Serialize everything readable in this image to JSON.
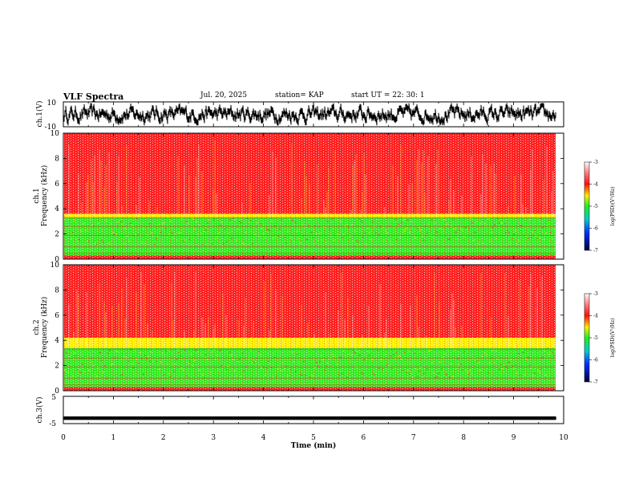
{
  "header": {
    "title": "VLF Spectra",
    "date": "Jul. 20, 2025",
    "station": "station= KAP",
    "start": "start UT = 22: 30: 1"
  },
  "chart_data": [
    {
      "type": "line",
      "name": "ch1-waveform",
      "ylabel": "ch.1(V)",
      "ylim": [
        -10,
        10
      ],
      "yticks": [
        "10",
        "-10"
      ],
      "xlim": [
        0,
        10
      ],
      "description_values": {
        "mean": 0,
        "amplitude_approx": 4
      }
    },
    {
      "type": "heatmap",
      "name": "ch1-spectrogram",
      "ylabel": "ch.1",
      "ylabel2": "Frequency (kHz)",
      "ylim": [
        0,
        10
      ],
      "yticks": [
        "0",
        "2",
        "4",
        "6",
        "8",
        "10"
      ],
      "xlim": [
        0,
        9.8
      ],
      "bands_khz": [
        {
          "from": 3.6,
          "to": 10,
          "level": -3.3
        },
        {
          "from": 3.3,
          "to": 3.6,
          "level": -4.0
        },
        {
          "from": 1.2,
          "to": 3.3,
          "level": -5.0
        },
        {
          "from": 0.3,
          "to": 1.2,
          "level": -4.4
        },
        {
          "from": 0,
          "to": 0.3,
          "level": -3.5
        }
      ],
      "colorbar": {
        "label": "log(PSD)(V²/Hz)",
        "range": [
          -7,
          -3
        ],
        "ticks": [
          "-3",
          "-4",
          "-5",
          "-6",
          "-7"
        ]
      }
    },
    {
      "type": "heatmap",
      "name": "ch2-spectrogram",
      "ylabel": "ch.2",
      "ylabel2": "Frequency (kHz)",
      "ylim": [
        0,
        10
      ],
      "yticks": [
        "0",
        "2",
        "4",
        "6",
        "8",
        "10"
      ],
      "xlim": [
        0,
        9.8
      ],
      "bands_khz": [
        {
          "from": 4.2,
          "to": 10,
          "level": -3.3
        },
        {
          "from": 3.4,
          "to": 4.2,
          "level": -4.0
        },
        {
          "from": 1.0,
          "to": 3.4,
          "level": -5.0
        },
        {
          "from": 0.3,
          "to": 1.0,
          "level": -4.4
        },
        {
          "from": 0,
          "to": 0.3,
          "level": -3.5
        }
      ],
      "colorbar": {
        "label": "log(PSD)(V²/Hz)",
        "range": [
          -7,
          -3
        ],
        "ticks": [
          "-3",
          "-4",
          "-5",
          "-6",
          "-7"
        ]
      }
    },
    {
      "type": "line",
      "name": "ch3-waveform",
      "ylabel": "ch.3(V)",
      "ylim": [
        -5,
        5
      ],
      "yticks": [
        "5",
        "-5"
      ],
      "xlim": [
        0,
        10
      ],
      "xlabel": "Time (min)",
      "xticks": [
        "0",
        "1",
        "2",
        "3",
        "4",
        "5",
        "6",
        "7",
        "8",
        "9",
        "10"
      ],
      "description_values": {
        "mean": -3,
        "amplitude_approx": 0.6
      }
    }
  ],
  "colors": {
    "red": "#ff2020",
    "yellow": "#ffee00",
    "green": "#33ee22",
    "white": "#ffffff",
    "axis": "#000000"
  }
}
